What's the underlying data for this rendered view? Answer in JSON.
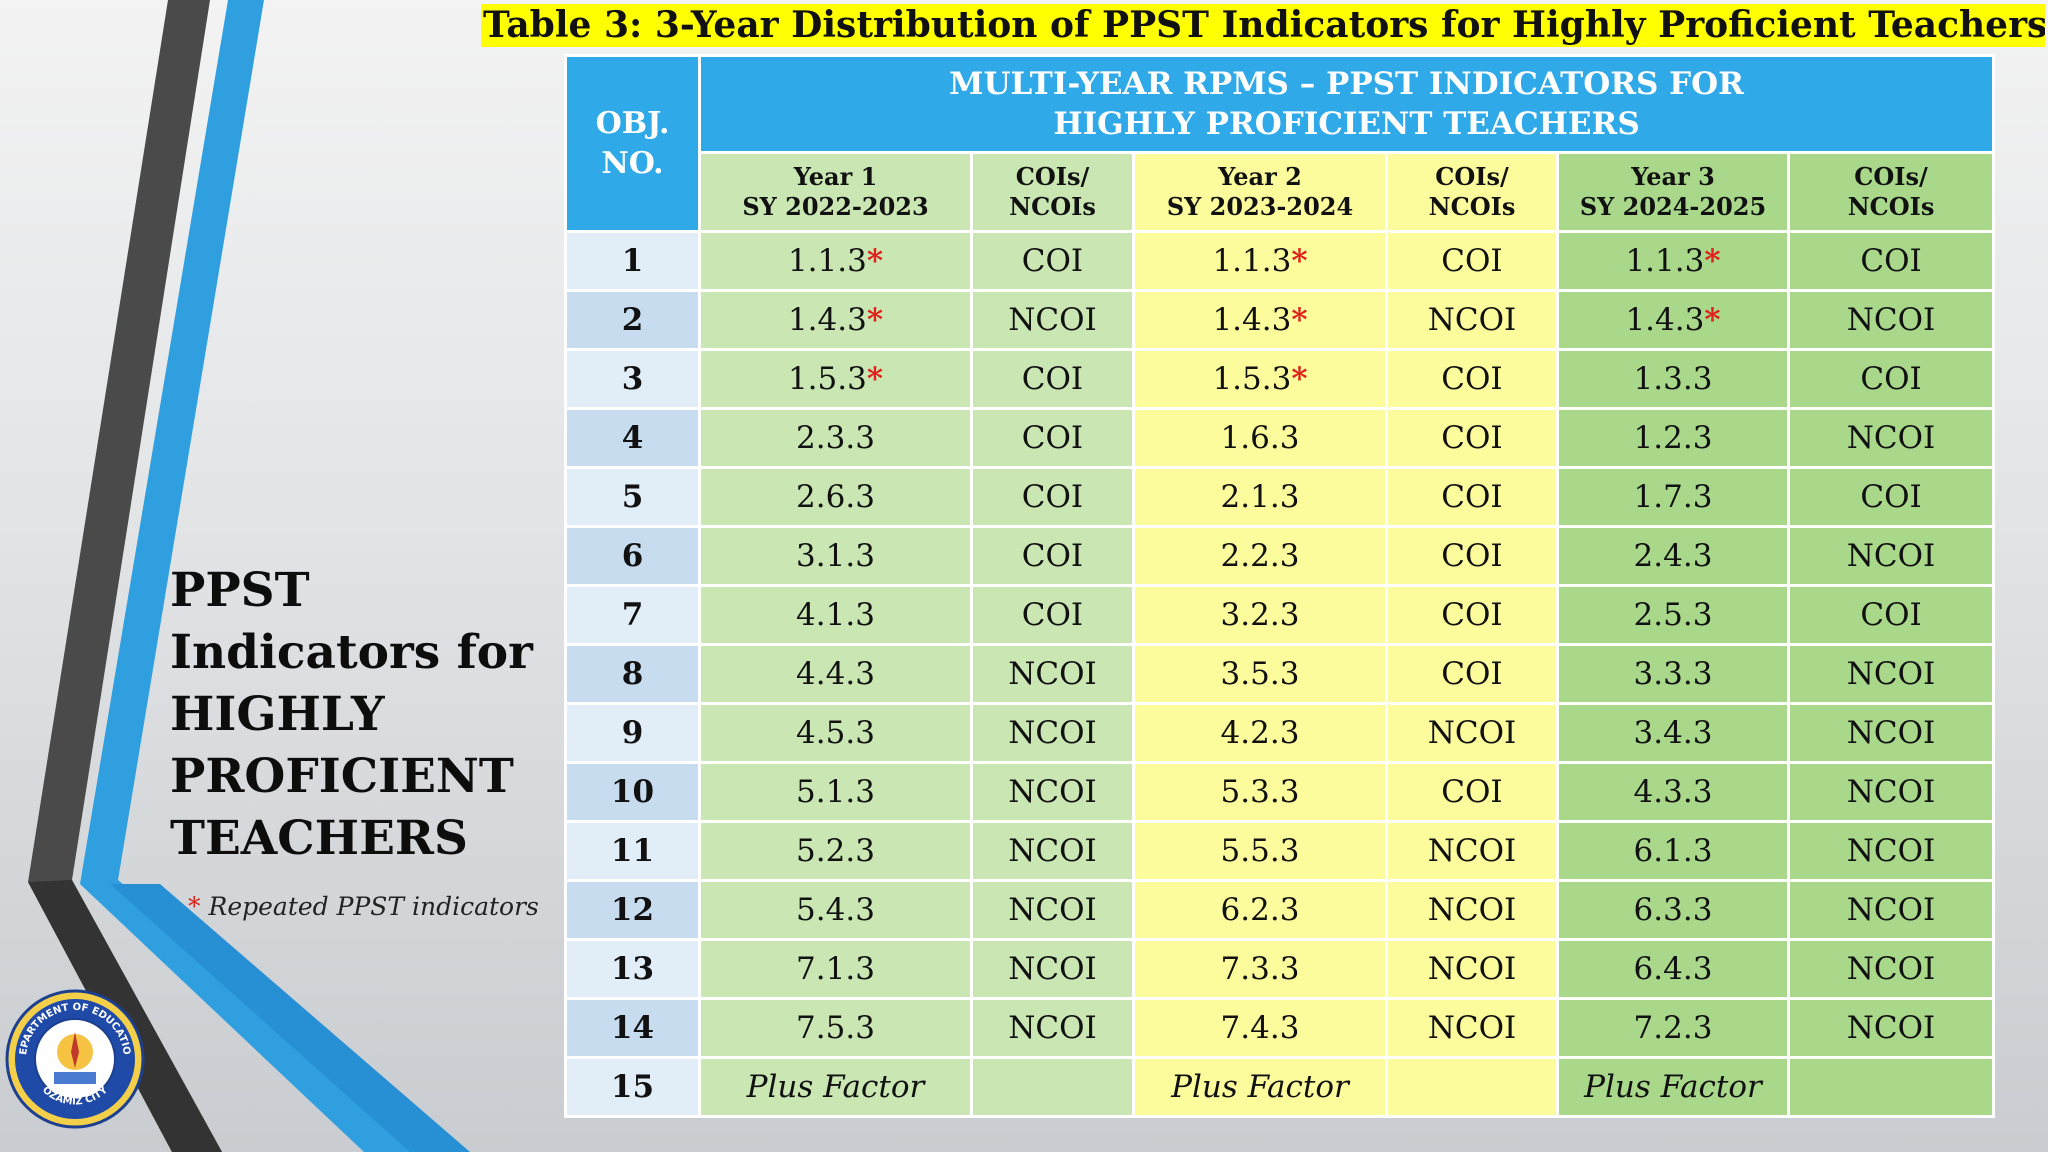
{
  "title": "Table 3: 3-Year Distribution of PPST Indicators for Highly Proficient Teachers",
  "side_heading": [
    "PPST",
    "Indicators for",
    "HIGHLY",
    "PROFICIENT",
    "TEACHERS"
  ],
  "legend": {
    "symbol": "*",
    "text": "Repeated PPST indicators"
  },
  "seal": {
    "top_text": "DEPARTMENT OF EDUCATION",
    "bottom_text": "OZAMIZ CITY"
  },
  "colors": {
    "header_blue": "#2fa9e8",
    "year1": "#c9e6b3",
    "year2": "#fcfc9c",
    "year3": "#a9d88a",
    "title_bg": "#ffff00",
    "star": "#e0211b"
  },
  "table": {
    "obj_header": [
      "OBJ.",
      "NO."
    ],
    "multi_header": [
      "MULTI-YEAR RPMS – PPST INDICATORS FOR",
      "HIGHLY PROFICIENT TEACHERS"
    ],
    "sub_headers": [
      [
        "Year 1",
        "SY 2022-2023"
      ],
      [
        "COIs/",
        "NCOIs"
      ],
      [
        "Year 2",
        "SY 2023-2024"
      ],
      [
        "COIs/",
        "NCOIs"
      ],
      [
        "Year 3",
        "SY 2024-2025"
      ],
      [
        "COIs/",
        "NCOIs"
      ]
    ],
    "rows": [
      {
        "no": "1",
        "y1": "1.1.3",
        "y1_rep": true,
        "c1": "COI",
        "y2": "1.1.3",
        "y2_rep": true,
        "c2": "COI",
        "y3": "1.1.3",
        "y3_rep": true,
        "c3": "COI"
      },
      {
        "no": "2",
        "y1": "1.4.3",
        "y1_rep": true,
        "c1": "NCOI",
        "y2": "1.4.3",
        "y2_rep": true,
        "c2": "NCOI",
        "y3": "1.4.3",
        "y3_rep": true,
        "c3": "NCOI"
      },
      {
        "no": "3",
        "y1": "1.5.3",
        "y1_rep": true,
        "c1": "COI",
        "y2": "1.5.3",
        "y2_rep": true,
        "c2": "COI",
        "y3": "1.3.3",
        "y3_rep": false,
        "c3": "COI"
      },
      {
        "no": "4",
        "y1": "2.3.3",
        "y1_rep": false,
        "c1": "COI",
        "y2": "1.6.3",
        "y2_rep": false,
        "c2": "COI",
        "y3": "1.2.3",
        "y3_rep": false,
        "c3": "NCOI"
      },
      {
        "no": "5",
        "y1": "2.6.3",
        "y1_rep": false,
        "c1": "COI",
        "y2": "2.1.3",
        "y2_rep": false,
        "c2": "COI",
        "y3": "1.7.3",
        "y3_rep": false,
        "c3": "COI"
      },
      {
        "no": "6",
        "y1": "3.1.3",
        "y1_rep": false,
        "c1": "COI",
        "y2": "2.2.3",
        "y2_rep": false,
        "c2": "COI",
        "y3": "2.4.3",
        "y3_rep": false,
        "c3": "NCOI"
      },
      {
        "no": "7",
        "y1": "4.1.3",
        "y1_rep": false,
        "c1": "COI",
        "y2": "3.2.3",
        "y2_rep": false,
        "c2": "COI",
        "y3": "2.5.3",
        "y3_rep": false,
        "c3": "COI"
      },
      {
        "no": "8",
        "y1": "4.4.3",
        "y1_rep": false,
        "c1": "NCOI",
        "y2": "3.5.3",
        "y2_rep": false,
        "c2": "COI",
        "y3": "3.3.3",
        "y3_rep": false,
        "c3": "NCOI"
      },
      {
        "no": "9",
        "y1": "4.5.3",
        "y1_rep": false,
        "c1": "NCOI",
        "y2": "4.2.3",
        "y2_rep": false,
        "c2": "NCOI",
        "y3": "3.4.3",
        "y3_rep": false,
        "c3": "NCOI"
      },
      {
        "no": "10",
        "y1": "5.1.3",
        "y1_rep": false,
        "c1": "NCOI",
        "y2": "5.3.3",
        "y2_rep": false,
        "c2": "COI",
        "y3": "4.3.3",
        "y3_rep": false,
        "c3": "NCOI"
      },
      {
        "no": "11",
        "y1": "5.2.3",
        "y1_rep": false,
        "c1": "NCOI",
        "y2": "5.5.3",
        "y2_rep": false,
        "c2": "NCOI",
        "y3": "6.1.3",
        "y3_rep": false,
        "c3": "NCOI"
      },
      {
        "no": "12",
        "y1": "5.4.3",
        "y1_rep": false,
        "c1": "NCOI",
        "y2": "6.2.3",
        "y2_rep": false,
        "c2": "NCOI",
        "y3": "6.3.3",
        "y3_rep": false,
        "c3": "NCOI"
      },
      {
        "no": "13",
        "y1": "7.1.3",
        "y1_rep": false,
        "c1": "NCOI",
        "y2": "7.3.3",
        "y2_rep": false,
        "c2": "NCOI",
        "y3": "6.4.3",
        "y3_rep": false,
        "c3": "NCOI"
      },
      {
        "no": "14",
        "y1": "7.5.3",
        "y1_rep": false,
        "c1": "NCOI",
        "y2": "7.4.3",
        "y2_rep": false,
        "c2": "NCOI",
        "y3": "7.2.3",
        "y3_rep": false,
        "c3": "NCOI"
      },
      {
        "no": "15",
        "y1": "Plus Factor",
        "y1_rep": false,
        "c1": "",
        "y2": "Plus Factor",
        "y2_rep": false,
        "c2": "",
        "y3": "Plus Factor",
        "y3_rep": false,
        "c3": "",
        "italic": true
      }
    ]
  }
}
